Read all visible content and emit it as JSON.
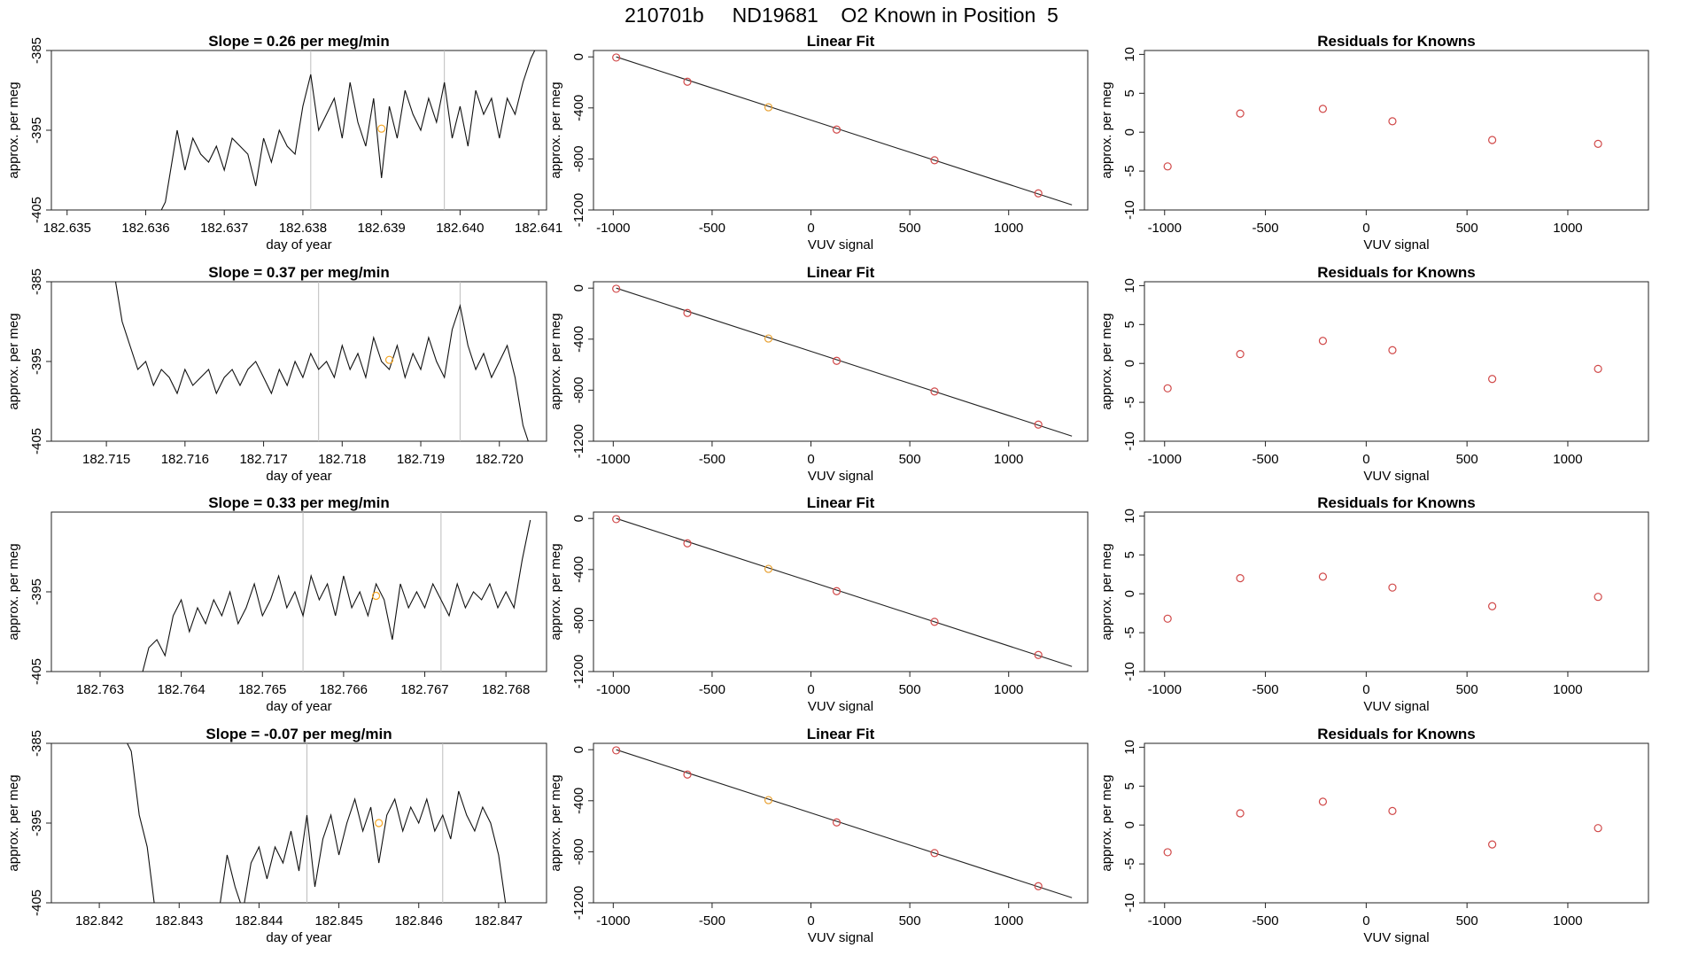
{
  "figure_title": "210701b     ND19681    O2 Known in Position  5",
  "chart_data": [
    {
      "type": "line",
      "row": 1,
      "panel": "time",
      "title": "Slope =  0.26  per meg/min",
      "xlabel": "day of year",
      "ylabel": "approx. per meg",
      "x_ticks": [
        "182.635",
        "182.636",
        "182.637",
        "182.638",
        "182.639",
        "182.640",
        "182.641"
      ],
      "xlim": [
        182.6348,
        182.6411
      ],
      "y_ticks": [
        "-385",
        "-395",
        "-405"
      ],
      "ylim": [
        -405,
        -385
      ],
      "vlines": [
        182.6381,
        182.6398
      ],
      "marker": {
        "x": 182.639,
        "y": -394.8,
        "color": "#f5a623"
      },
      "series": [
        {
          "x": [
            182.6362,
            182.63625,
            182.6364,
            182.6365,
            182.6366,
            182.6367,
            182.6368,
            182.6369,
            182.637,
            182.6371,
            182.6372,
            182.6373,
            182.6374,
            182.6375,
            182.6376,
            182.6377,
            182.6378,
            182.6379,
            182.638,
            182.6381,
            182.6382,
            182.6383,
            182.6384,
            182.6385,
            182.6386,
            182.6387,
            182.6388,
            182.6389,
            182.639,
            182.6391,
            182.6392,
            182.6393,
            182.6394,
            182.6395,
            182.6396,
            182.6397,
            182.6398,
            182.6399,
            182.64,
            182.6401,
            182.6402,
            182.6403,
            182.6404,
            182.6405,
            182.6406,
            182.6407,
            182.6408,
            182.6409,
            182.641
          ],
          "y": [
            -405,
            -404,
            -395,
            -400,
            -396,
            -398,
            -399,
            -397,
            -400,
            -396,
            -397,
            -398,
            -402,
            -396,
            -399,
            -395,
            -397,
            -398,
            -392,
            -388,
            -395,
            -393,
            -391,
            -396,
            -389,
            -394,
            -397,
            -391,
            -401,
            -392,
            -396,
            -390,
            -393,
            -395,
            -391,
            -394,
            -389,
            -396,
            -392,
            -397,
            -390,
            -393,
            -391,
            -396,
            -391,
            -393,
            -389,
            -386,
            -384
          ]
        }
      ]
    },
    {
      "type": "line",
      "row": 1,
      "panel": "fit",
      "title": "Linear Fit",
      "xlabel": "VUV signal",
      "ylabel": "approx. per meg",
      "x_ticks": [
        -1000,
        -500,
        0,
        500,
        1000
      ],
      "xlim": [
        -1100,
        1400
      ],
      "y_ticks": [
        0,
        -400,
        -800,
        -1200
      ],
      "ylim": [
        -1200,
        50
      ],
      "points": [
        {
          "x": -985,
          "y": -5,
          "color": "#d04848"
        },
        {
          "x": -625,
          "y": -195,
          "color": "#d04848"
        },
        {
          "x": -215,
          "y": -395,
          "color": "#e8a030"
        },
        {
          "x": 130,
          "y": -570,
          "color": "#d04848"
        },
        {
          "x": 625,
          "y": -810,
          "color": "#d04848"
        },
        {
          "x": 1150,
          "y": -1070,
          "color": "#d04848"
        }
      ],
      "fit_line": {
        "x": [
          -985,
          1320
        ],
        "y": [
          0,
          -1160
        ]
      }
    },
    {
      "type": "scatter",
      "row": 1,
      "panel": "resid",
      "title": "Residuals for Knowns",
      "xlabel": "VUV signal",
      "ylabel": "approx. per meg",
      "x_ticks": [
        -1000,
        -500,
        0,
        500,
        1000
      ],
      "xlim": [
        -1100,
        1400
      ],
      "y_ticks": [
        10,
        5,
        0,
        -5,
        -10
      ],
      "ylim": [
        -10,
        10.5
      ],
      "points": [
        {
          "x": -985,
          "y": -4.4
        },
        {
          "x": -625,
          "y": 2.4
        },
        {
          "x": -215,
          "y": 3
        },
        {
          "x": 130,
          "y": 1.4
        },
        {
          "x": 625,
          "y": -1
        },
        {
          "x": 1150,
          "y": -1.5
        }
      ],
      "point_color": "#d04848"
    },
    {
      "type": "line",
      "row": 2,
      "panel": "time",
      "title": "Slope =  0.37  per meg/min",
      "xlabel": "day of year",
      "ylabel": "approx. per meg",
      "x_ticks": [
        "182.715",
        "182.716",
        "182.717",
        "182.718",
        "182.719",
        "182.720"
      ],
      "xlim": [
        182.7143,
        182.7206
      ],
      "y_ticks": [
        "-385",
        "-395",
        "-405"
      ],
      "ylim": [
        -405,
        -385
      ],
      "vlines": [
        182.7177,
        182.7195
      ],
      "marker": {
        "x": 182.7186,
        "y": -394.8,
        "color": "#f5a623"
      },
      "series": [
        {
          "x": [
            182.7151,
            182.7152,
            182.7153,
            182.7154,
            182.7155,
            182.7156,
            182.7157,
            182.7158,
            182.7159,
            182.716,
            182.7161,
            182.7162,
            182.7163,
            182.7164,
            182.7165,
            182.7166,
            182.7167,
            182.7168,
            182.7169,
            182.717,
            182.7171,
            182.7172,
            182.7173,
            182.7174,
            182.7175,
            182.7176,
            182.7177,
            182.7178,
            182.7179,
            182.718,
            182.7181,
            182.7182,
            182.7183,
            182.7184,
            182.7185,
            182.7186,
            182.7187,
            182.7188,
            182.7189,
            182.719,
            182.7191,
            182.7192,
            182.7193,
            182.7194,
            182.7195,
            182.7196,
            182.7197,
            182.7198,
            182.7199,
            182.72,
            182.7201,
            182.7202,
            182.7203,
            182.7204
          ],
          "y": [
            -384,
            -390,
            -393,
            -396,
            -395,
            -398,
            -396,
            -397,
            -399,
            -396,
            -398,
            -397,
            -396,
            -399,
            -397,
            -396,
            -398,
            -396,
            -395,
            -397,
            -399,
            -396,
            -398,
            -395,
            -397,
            -394,
            -396,
            -395,
            -397,
            -393,
            -396,
            -394,
            -397,
            -392,
            -395,
            -396,
            -393,
            -397,
            -394,
            -396,
            -392,
            -395,
            -397,
            -391,
            -388,
            -393,
            -396,
            -394,
            -397,
            -395,
            -393,
            -397,
            -403,
            -406
          ]
        }
      ]
    },
    {
      "type": "line",
      "row": 2,
      "panel": "fit",
      "title": "Linear Fit",
      "xlabel": "VUV signal",
      "ylabel": "approx. per meg",
      "x_ticks": [
        -1000,
        -500,
        0,
        500,
        1000
      ],
      "xlim": [
        -1100,
        1400
      ],
      "y_ticks": [
        0,
        -400,
        -800,
        -1200
      ],
      "ylim": [
        -1200,
        50
      ],
      "points": [
        {
          "x": -985,
          "y": -5,
          "color": "#d04848"
        },
        {
          "x": -625,
          "y": -195,
          "color": "#d04848"
        },
        {
          "x": -215,
          "y": -395,
          "color": "#e8a030"
        },
        {
          "x": 130,
          "y": -570,
          "color": "#d04848"
        },
        {
          "x": 625,
          "y": -810,
          "color": "#d04848"
        },
        {
          "x": 1150,
          "y": -1070,
          "color": "#d04848"
        }
      ],
      "fit_line": {
        "x": [
          -985,
          1320
        ],
        "y": [
          0,
          -1160
        ]
      }
    },
    {
      "type": "scatter",
      "row": 2,
      "panel": "resid",
      "title": "Residuals for Knowns",
      "xlabel": "VUV signal",
      "ylabel": "approx. per meg",
      "x_ticks": [
        -1000,
        -500,
        0,
        500,
        1000
      ],
      "xlim": [
        -1100,
        1400
      ],
      "y_ticks": [
        10,
        5,
        0,
        -5,
        -10
      ],
      "ylim": [
        -10,
        10.5
      ],
      "points": [
        {
          "x": -985,
          "y": -3.2
        },
        {
          "x": -625,
          "y": 1.2
        },
        {
          "x": -215,
          "y": 2.9
        },
        {
          "x": 130,
          "y": 1.7
        },
        {
          "x": 625,
          "y": -2
        },
        {
          "x": 1150,
          "y": -0.7
        }
      ],
      "point_color": "#d04848"
    },
    {
      "type": "line",
      "row": 3,
      "panel": "time",
      "title": "Slope =  0.33  per meg/min",
      "xlabel": "day of year",
      "ylabel": "approx. per meg",
      "x_ticks": [
        "182.763",
        "182.764",
        "182.765",
        "182.766",
        "182.767",
        "182.768"
      ],
      "xlim": [
        182.7624,
        182.7685
      ],
      "y_ticks": [
        "-395",
        "-405"
      ],
      "ylim": [
        -405,
        -385
      ],
      "vlines": [
        182.7655,
        182.7672
      ],
      "marker": {
        "x": 182.7664,
        "y": -395.5,
        "color": "#f5a623"
      },
      "series": [
        {
          "x": [
            182.7635,
            182.7636,
            182.7637,
            182.7638,
            182.7639,
            182.764,
            182.7641,
            182.7642,
            182.7643,
            182.7644,
            182.7645,
            182.7646,
            182.7647,
            182.7648,
            182.7649,
            182.765,
            182.7651,
            182.7652,
            182.7653,
            182.7654,
            182.7655,
            182.7656,
            182.7657,
            182.7658,
            182.7659,
            182.766,
            182.7661,
            182.7662,
            182.7663,
            182.7664,
            182.7665,
            182.7666,
            182.7667,
            182.7668,
            182.7669,
            182.767,
            182.7671,
            182.7672,
            182.7673,
            182.7674,
            182.7675,
            182.7676,
            182.7677,
            182.7678,
            182.7679,
            182.768,
            182.7681,
            182.7682,
            182.7683
          ],
          "y": [
            -406,
            -402,
            -401,
            -403,
            -398,
            -396,
            -400,
            -397,
            -399,
            -396,
            -398,
            -395,
            -399,
            -397,
            -394,
            -398,
            -396,
            -393,
            -397,
            -395,
            -398,
            -393,
            -396,
            -394,
            -398,
            -393,
            -397,
            -395,
            -398,
            -394,
            -396,
            -401,
            -394,
            -397,
            -395,
            -397,
            -394,
            -396,
            -398,
            -394,
            -397,
            -395,
            -396,
            -394,
            -397,
            -395,
            -397,
            -391,
            -386
          ]
        }
      ]
    },
    {
      "type": "line",
      "row": 3,
      "panel": "fit",
      "title": "Linear Fit",
      "xlabel": "VUV signal",
      "ylabel": "approx. per meg",
      "x_ticks": [
        -1000,
        -500,
        0,
        500,
        1000
      ],
      "xlim": [
        -1100,
        1400
      ],
      "y_ticks": [
        0,
        -400,
        -800,
        -1200
      ],
      "ylim": [
        -1200,
        50
      ],
      "points": [
        {
          "x": -985,
          "y": -5,
          "color": "#d04848"
        },
        {
          "x": -625,
          "y": -195,
          "color": "#d04848"
        },
        {
          "x": -215,
          "y": -395,
          "color": "#e8a030"
        },
        {
          "x": 130,
          "y": -570,
          "color": "#d04848"
        },
        {
          "x": 625,
          "y": -810,
          "color": "#d04848"
        },
        {
          "x": 1150,
          "y": -1070,
          "color": "#d04848"
        }
      ],
      "fit_line": {
        "x": [
          -985,
          1320
        ],
        "y": [
          0,
          -1160
        ]
      }
    },
    {
      "type": "scatter",
      "row": 3,
      "panel": "resid",
      "title": "Residuals for Knowns",
      "xlabel": "VUV signal",
      "ylabel": "approx. per meg",
      "x_ticks": [
        -1000,
        -500,
        0,
        500,
        1000
      ],
      "xlim": [
        -1100,
        1400
      ],
      "y_ticks": [
        10,
        5,
        0,
        -5,
        -10
      ],
      "ylim": [
        -10,
        10.5
      ],
      "points": [
        {
          "x": -985,
          "y": -3.2
        },
        {
          "x": -625,
          "y": 2
        },
        {
          "x": -215,
          "y": 2.2
        },
        {
          "x": 130,
          "y": 0.8
        },
        {
          "x": 625,
          "y": -1.6
        },
        {
          "x": 1150,
          "y": -0.4
        }
      ],
      "point_color": "#d04848"
    },
    {
      "type": "line",
      "row": 4,
      "panel": "time",
      "title": "Slope =  -0.07  per meg/min",
      "xlabel": "day of year",
      "ylabel": "approx. per meg",
      "x_ticks": [
        "182.842",
        "182.843",
        "182.844",
        "182.845",
        "182.846",
        "182.847"
      ],
      "xlim": [
        182.8414,
        182.8476
      ],
      "y_ticks": [
        "-385",
        "-395",
        "-405"
      ],
      "ylim": [
        -405,
        -385
      ],
      "vlines": [
        182.8446,
        182.8463
      ],
      "marker": {
        "x": 182.8455,
        "y": -395,
        "color": "#f5a623"
      },
      "series": [
        {
          "x": [
            182.8423,
            182.8424,
            182.8425,
            182.8426,
            182.8427
          ],
          "y": [
            -384,
            -386,
            -394,
            -398,
            -406
          ]
        },
        {
          "x": [
            182.8435,
            182.8436,
            182.8437,
            182.8438,
            182.8439,
            182.844,
            182.8441,
            182.8442,
            182.8443,
            182.8444,
            182.8445,
            182.8446,
            182.8447,
            182.8448,
            182.8449,
            182.845,
            182.8451,
            182.8452,
            182.8453,
            182.8454,
            182.8455,
            182.8456,
            182.8457,
            182.8458,
            182.8459,
            182.846,
            182.8461,
            182.8462,
            182.8463,
            182.8464,
            182.8465,
            182.8466,
            182.8467,
            182.8468,
            182.8469,
            182.847,
            182.8471
          ],
          "y": [
            -406,
            -399,
            -403,
            -406,
            -400,
            -398,
            -402,
            -398,
            -400,
            -396,
            -401,
            -394,
            -403,
            -397,
            -394,
            -399,
            -395,
            -392,
            -396,
            -393,
            -400,
            -394,
            -392,
            -396,
            -393,
            -395,
            -392,
            -396,
            -394,
            -397,
            -391,
            -394,
            -396,
            -393,
            -395,
            -399,
            -406
          ]
        }
      ]
    },
    {
      "type": "line",
      "row": 4,
      "panel": "fit",
      "title": "Linear Fit",
      "xlabel": "VUV signal",
      "ylabel": "approx. per meg",
      "x_ticks": [
        -1000,
        -500,
        0,
        500,
        1000
      ],
      "xlim": [
        -1100,
        1400
      ],
      "y_ticks": [
        0,
        -400,
        -800,
        -1200
      ],
      "ylim": [
        -1200,
        50
      ],
      "points": [
        {
          "x": -985,
          "y": -5,
          "color": "#d04848"
        },
        {
          "x": -625,
          "y": -195,
          "color": "#d04848"
        },
        {
          "x": -215,
          "y": -395,
          "color": "#e8a030"
        },
        {
          "x": 130,
          "y": -570,
          "color": "#d04848"
        },
        {
          "x": 625,
          "y": -810,
          "color": "#d04848"
        },
        {
          "x": 1150,
          "y": -1070,
          "color": "#d04848"
        }
      ],
      "fit_line": {
        "x": [
          -985,
          1320
        ],
        "y": [
          0,
          -1160
        ]
      }
    },
    {
      "type": "scatter",
      "row": 4,
      "panel": "resid",
      "title": "Residuals for Knowns",
      "xlabel": "VUV signal",
      "ylabel": "approx. per meg",
      "x_ticks": [
        -1000,
        -500,
        0,
        500,
        1000
      ],
      "xlim": [
        -1100,
        1400
      ],
      "y_ticks": [
        10,
        5,
        0,
        -5,
        -10
      ],
      "ylim": [
        -10,
        10.5
      ],
      "points": [
        {
          "x": -985,
          "y": -3.5
        },
        {
          "x": -625,
          "y": 1.5
        },
        {
          "x": -215,
          "y": 3
        },
        {
          "x": 130,
          "y": 1.8
        },
        {
          "x": 625,
          "y": -2.5
        },
        {
          "x": 1150,
          "y": -0.4
        }
      ],
      "point_color": "#d04848"
    }
  ]
}
